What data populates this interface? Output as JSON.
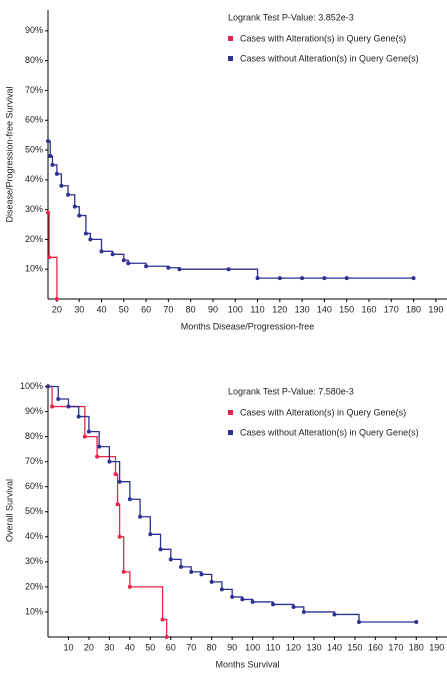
{
  "chart_data": [
    {
      "type": "line",
      "step": true,
      "annotation": "Logrank Test P-Value: 3.852e-3",
      "x_label": "Months Disease/Progression-free",
      "y_label": "Disease/Progression-free Survival",
      "xlim": [
        16,
        195
      ],
      "ylim": [
        0,
        97
      ],
      "xticks": [
        20,
        30,
        40,
        50,
        60,
        70,
        80,
        90,
        100,
        110,
        120,
        130,
        140,
        150,
        160,
        170,
        180,
        190
      ],
      "yticks": [
        {
          "value": 10,
          "label": "10%"
        },
        {
          "value": 20,
          "label": "20%"
        },
        {
          "value": 30,
          "label": "30%"
        },
        {
          "value": 40,
          "label": "40%"
        },
        {
          "value": 50,
          "label": "50%"
        },
        {
          "value": 60,
          "label": "60%"
        },
        {
          "value": 70,
          "label": "70%"
        },
        {
          "value": 80,
          "label": "80%"
        },
        {
          "value": 90,
          "label": "90%"
        }
      ],
      "series": [
        {
          "name": "Cases with Alteration(s) in Query Gene(s)",
          "color": "#e8254a",
          "x": [
            16,
            16.5,
            20
          ],
          "values": [
            29,
            14,
            0
          ]
        },
        {
          "name": "Cases without Alteration(s) in Query Gene(s)",
          "color": "#2e3192",
          "x": [
            16,
            17,
            18,
            20,
            22,
            25,
            28,
            30,
            33,
            35,
            40,
            45,
            50,
            52,
            60,
            70,
            75,
            97,
            110,
            120,
            130,
            140,
            150,
            180
          ],
          "values": [
            53,
            48,
            45,
            42,
            38,
            35,
            31,
            28,
            22,
            20,
            16,
            15,
            13,
            12,
            11,
            10.5,
            10,
            10,
            7,
            7,
            7,
            7,
            7,
            7
          ]
        }
      ]
    },
    {
      "type": "line",
      "step": true,
      "annotation": "Logrank Test P-Value: 7.580e-3",
      "x_label": "Months Survival",
      "y_label": "Overall Survival",
      "xlim": [
        0,
        195
      ],
      "ylim": [
        0,
        101
      ],
      "xticks": [
        10,
        20,
        30,
        40,
        50,
        60,
        70,
        80,
        90,
        100,
        110,
        120,
        130,
        140,
        150,
        160,
        170,
        180,
        190
      ],
      "yticks": [
        {
          "value": 10,
          "label": "10%"
        },
        {
          "value": 20,
          "label": "20%"
        },
        {
          "value": 30,
          "label": "30%"
        },
        {
          "value": 40,
          "label": "40%"
        },
        {
          "value": 50,
          "label": "50%"
        },
        {
          "value": 60,
          "label": "60%"
        },
        {
          "value": 70,
          "label": "70%"
        },
        {
          "value": 80,
          "label": "80%"
        },
        {
          "value": 90,
          "label": "90%"
        },
        {
          "value": 100,
          "label": "100%"
        }
      ],
      "series": [
        {
          "name": "Cases with Alteration(s) in Query Gene(s)",
          "color": "#e8254a",
          "x": [
            0,
            2,
            18,
            24,
            33,
            34,
            35,
            37,
            40,
            56,
            58
          ],
          "values": [
            100,
            92,
            80,
            72,
            65,
            53,
            40,
            26,
            20,
            7,
            0
          ]
        },
        {
          "name": "Cases without Alteration(s) in Query Gene(s)",
          "color": "#2e3192",
          "x": [
            0,
            5,
            10,
            15,
            20,
            25,
            30,
            35,
            40,
            45,
            50,
            55,
            60,
            65,
            70,
            75,
            80,
            85,
            90,
            95,
            100,
            110,
            120,
            125,
            140,
            152,
            180
          ],
          "values": [
            100,
            95,
            92,
            88,
            82,
            76,
            70,
            62,
            55,
            48,
            41,
            35,
            31,
            28,
            26,
            25,
            22,
            19,
            16,
            15,
            14,
            13,
            12,
            10,
            9,
            6,
            6
          ]
        }
      ]
    }
  ]
}
